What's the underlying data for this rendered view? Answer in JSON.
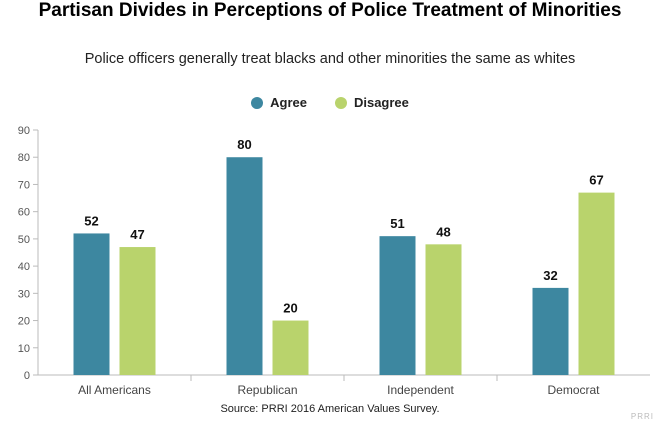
{
  "chart_data": {
    "type": "bar",
    "title": "Partisan Divides in Perceptions of Police Treatment of Minorities",
    "subtitle": "Police officers generally treat blacks and other minorities the same as whites",
    "categories": [
      "All Americans",
      "Republican",
      "Independent",
      "Democrat"
    ],
    "series": [
      {
        "name": "Agree",
        "values": [
          52,
          80,
          51,
          32
        ],
        "color": "#3d87a0"
      },
      {
        "name": "Disagree",
        "values": [
          47,
          20,
          48,
          67
        ],
        "color": "#b9d36c"
      }
    ],
    "ylim": [
      0,
      90
    ],
    "yticks": [
      "0",
      "10",
      "20",
      "30",
      "40",
      "50",
      "60",
      "70",
      "80",
      "90"
    ],
    "grid": false,
    "legend_position": "top-center",
    "source": "Source: PRRI 2016 American Values Survey.",
    "watermark": "PRRI"
  }
}
